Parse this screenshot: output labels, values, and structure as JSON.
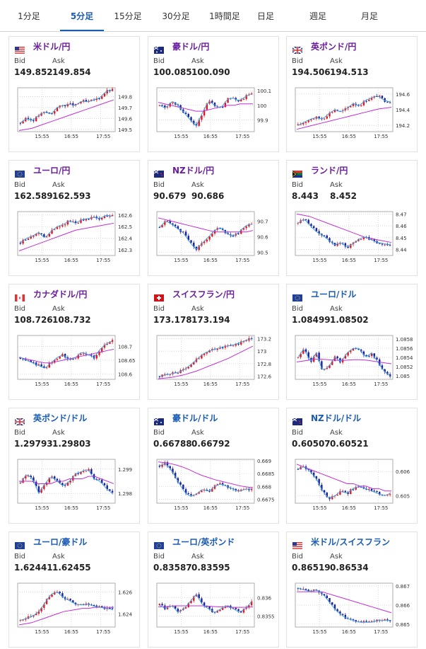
{
  "tabs": [
    {
      "label": "1分足",
      "active": false
    },
    {
      "label": "5分足",
      "active": true
    },
    {
      "label": "15分足",
      "active": false
    },
    {
      "label": "30分足",
      "active": false
    },
    {
      "label": "1時間足",
      "active": false
    },
    {
      "label": "日足",
      "active": false
    },
    {
      "label": "週足",
      "active": false
    },
    {
      "label": "月足",
      "active": false
    }
  ],
  "labels": {
    "bid": "Bid",
    "ask": "Ask"
  },
  "colors": {
    "tab_active": "#1a5bb5",
    "pair_jpy": "#6a1e9e",
    "pair_cross": "#1a5bb5",
    "candle_up": "#e8141c",
    "candle_down": "#1c1c9c",
    "ma_fast": "#3fa3e0",
    "ma_slow": "#c22fd3",
    "grid": "#cccccc"
  },
  "cards": [
    {
      "pair": "米ドル/円",
      "flag": "us-jp-flag-icon",
      "bid": "149.852",
      "ask": "149.854",
      "chart_data": {
        "type": "candlestick",
        "x_ticks": [
          "15:55",
          "16:55",
          "17:55"
        ],
        "y_ticks": [
          "149.8",
          "149.7",
          "149.6",
          "149.5"
        ],
        "ylim": [
          149.48,
          149.88
        ],
        "trend": [
          149.56,
          149.6,
          149.58,
          149.63,
          149.66,
          149.64,
          149.7,
          149.72,
          149.73,
          149.72,
          149.76,
          149.75,
          149.77,
          149.79,
          149.85,
          149.86
        ],
        "ma_slow": [
          149.49,
          149.5,
          149.51,
          149.53,
          149.55,
          149.57,
          149.59,
          149.61,
          149.63,
          149.65,
          149.67,
          149.69,
          149.71,
          149.73,
          149.75,
          149.77
        ]
      }
    },
    {
      "pair": "豪ドル/円",
      "flag": "au-jp-flag-icon",
      "bid": "100.085",
      "ask": "100.090",
      "chart_data": {
        "type": "candlestick",
        "x_ticks": [
          "15:55",
          "16:55",
          "17:55"
        ],
        "y_ticks": [
          "100.1",
          "100",
          "99.9"
        ],
        "ylim": [
          99.82,
          100.12
        ],
        "trend": [
          100.0,
          99.98,
          100.03,
          100.0,
          99.95,
          99.9,
          99.86,
          99.95,
          100.03,
          100.0,
          99.98,
          100.04,
          100.05,
          100.03,
          100.06,
          100.08
        ],
        "ma_slow": [
          100.02,
          100.01,
          100.0,
          99.99,
          99.98,
          99.97,
          99.96,
          99.96,
          99.97,
          99.98,
          99.99,
          100.0,
          100.0,
          100.01,
          100.01,
          100.01
        ]
      }
    },
    {
      "pair": "英ポンド/円",
      "flag": "gb-jp-flag-icon",
      "bid": "194.506",
      "ask": "194.513",
      "chart_data": {
        "type": "candlestick",
        "x_ticks": [
          "15:55",
          "16:55",
          "17:55"
        ],
        "y_ticks": [
          "194.6",
          "194.4",
          "194.2"
        ],
        "ylim": [
          194.12,
          194.68
        ],
        "trend": [
          194.2,
          194.24,
          194.28,
          194.3,
          194.28,
          194.35,
          194.4,
          194.37,
          194.42,
          194.48,
          194.45,
          194.52,
          194.55,
          194.58,
          194.52,
          194.5
        ],
        "ma_slow": [
          194.15,
          194.17,
          194.19,
          194.21,
          194.23,
          194.25,
          194.27,
          194.29,
          194.31,
          194.33,
          194.35,
          194.37,
          194.39,
          194.41,
          194.42,
          194.43
        ]
      }
    },
    {
      "pair": "ユーロ/円",
      "flag": "eu-jp-flag-icon",
      "bid": "162.589",
      "ask": "162.593",
      "chart_data": {
        "type": "candlestick",
        "x_ticks": [
          "15:55",
          "16:55",
          "17:55"
        ],
        "y_ticks": [
          "162.6",
          "162.5",
          "162.4",
          "162.3"
        ],
        "ylim": [
          162.25,
          162.63
        ],
        "trend": [
          162.36,
          162.4,
          162.42,
          162.45,
          162.4,
          162.46,
          162.5,
          162.52,
          162.55,
          162.53,
          162.56,
          162.57,
          162.58,
          162.57,
          162.6,
          162.59
        ],
        "ma_slow": [
          162.29,
          162.31,
          162.33,
          162.35,
          162.37,
          162.39,
          162.41,
          162.43,
          162.45,
          162.47,
          162.48,
          162.49,
          162.5,
          162.51,
          162.52,
          162.53
        ]
      }
    },
    {
      "pair": "NZドル/円",
      "flag": "nz-jp-flag-icon",
      "bid": "90.679",
      "ask": "90.686",
      "chart_data": {
        "type": "candlestick",
        "x_ticks": [
          "15:55",
          "16:55",
          "17:55"
        ],
        "y_ticks": [
          "90.7",
          "90.6",
          "90.5"
        ],
        "ylim": [
          90.48,
          90.76
        ],
        "trend": [
          90.66,
          90.7,
          90.68,
          90.65,
          90.62,
          90.56,
          90.52,
          90.56,
          90.6,
          90.64,
          90.66,
          90.62,
          90.6,
          90.63,
          90.67,
          90.68
        ],
        "ma_slow": [
          90.72,
          90.71,
          90.7,
          90.69,
          90.68,
          90.67,
          90.66,
          90.65,
          90.64,
          90.63,
          90.63,
          90.63,
          90.63,
          90.63,
          90.63,
          90.64
        ]
      }
    },
    {
      "pair": "ランド/円",
      "flag": "za-jp-flag-icon",
      "bid": "8.443",
      "ask": "8.452",
      "chart_data": {
        "type": "candlestick",
        "x_ticks": [
          "15:55",
          "16:55",
          "17:55"
        ],
        "y_ticks": [
          "8.47",
          "8.46",
          "8.45",
          "8.44"
        ],
        "ylim": [
          8.435,
          8.472
        ],
        "trend": [
          8.462,
          8.466,
          8.46,
          8.455,
          8.452,
          8.448,
          8.444,
          8.446,
          8.442,
          8.445,
          8.449,
          8.451,
          8.448,
          8.446,
          8.445,
          8.444
        ],
        "ma_slow": [
          8.47,
          8.469,
          8.468,
          8.466,
          8.464,
          8.462,
          8.46,
          8.458,
          8.456,
          8.454,
          8.452,
          8.45,
          8.449,
          8.448,
          8.447,
          8.446
        ]
      }
    },
    {
      "pair": "カナダドル/円",
      "flag": "ca-jp-flag-icon",
      "bid": "108.726",
      "ask": "108.732",
      "chart_data": {
        "type": "candlestick",
        "x_ticks": [
          "15:55",
          "16:55",
          "17:55"
        ],
        "y_ticks": [
          "108.7",
          "108.65",
          "108.6"
        ],
        "ylim": [
          108.58,
          108.74
        ],
        "trend": [
          108.66,
          108.65,
          108.64,
          108.63,
          108.62,
          108.64,
          108.66,
          108.67,
          108.65,
          108.66,
          108.68,
          108.67,
          108.66,
          108.69,
          108.71,
          108.72
        ],
        "ma_slow": [
          108.66,
          108.655,
          108.65,
          108.645,
          108.64,
          108.64,
          108.645,
          108.65,
          108.655,
          108.66,
          108.665,
          108.67,
          108.675,
          108.68,
          108.685,
          108.69
        ]
      }
    },
    {
      "pair": "スイスフラン/円",
      "flag": "ch-jp-flag-icon",
      "bid": "173.178",
      "ask": "173.194",
      "chart_data": {
        "type": "candlestick",
        "x_ticks": [
          "15:55",
          "16:55",
          "17:55"
        ],
        "y_ticks": [
          "173.2",
          "173",
          "172.8",
          "172.6"
        ],
        "ylim": [
          172.55,
          173.25
        ],
        "trend": [
          172.6,
          172.62,
          172.64,
          172.66,
          172.7,
          172.78,
          172.86,
          172.95,
          173.0,
          173.03,
          173.06,
          173.08,
          173.1,
          173.13,
          173.17,
          173.2
        ],
        "ma_slow": [
          172.56,
          172.57,
          172.58,
          172.6,
          172.62,
          172.65,
          172.68,
          172.72,
          172.76,
          172.8,
          172.84,
          172.88,
          172.93,
          172.98,
          173.03,
          173.08
        ]
      }
    },
    {
      "pair": "ユーロ/ドル",
      "flag": "eu-us-flag-icon",
      "bid": "1.08499",
      "ask": "1.08502",
      "chart_data": {
        "type": "candlestick",
        "x_ticks": [
          "15:55",
          "16:55",
          "17:55"
        ],
        "y_ticks": [
          "1.0858",
          "1.0856",
          "1.0854",
          "1.0852",
          "1.085"
        ],
        "ylim": [
          1.08492,
          1.08588
        ],
        "trend": [
          1.0854,
          1.0856,
          1.0853,
          1.0855,
          1.0851,
          1.0852,
          1.0854,
          1.0853,
          1.0855,
          1.0856,
          1.0856,
          1.0854,
          1.0855,
          1.0853,
          1.0851,
          1.085
        ],
        "ma_slow": [
          1.0853,
          1.08532,
          1.08534,
          1.08536,
          1.08536,
          1.08535,
          1.08534,
          1.08533,
          1.08534,
          1.08535,
          1.08535,
          1.08534,
          1.08532,
          1.0853,
          1.08528,
          1.08526
        ]
      }
    },
    {
      "pair": "英ポンド/ドル",
      "flag": "gb-us-flag-icon",
      "bid": "1.29793",
      "ask": "1.29803",
      "chart_data": {
        "type": "candlestick",
        "x_ticks": [
          "15:55",
          "16:55",
          "17:55"
        ],
        "y_ticks": [
          "1.299",
          "1.298"
        ],
        "ylim": [
          1.2976,
          1.2994
        ],
        "trend": [
          1.2984,
          1.2988,
          1.2986,
          1.298,
          1.2984,
          1.2987,
          1.2985,
          1.2983,
          1.2985,
          1.2988,
          1.2989,
          1.299,
          1.2986,
          1.2985,
          1.2982,
          1.298
        ],
        "ma_slow": [
          1.2985,
          1.2985,
          1.2985,
          1.2984,
          1.2984,
          1.2984,
          1.2985,
          1.2985,
          1.2986,
          1.2986,
          1.2986,
          1.2987,
          1.2987,
          1.2986,
          1.2985,
          1.2984
        ]
      }
    },
    {
      "pair": "豪ドル/ドル",
      "flag": "au-us-flag-icon",
      "bid": "0.66788",
      "ask": "0.66792",
      "chart_data": {
        "type": "candlestick",
        "x_ticks": [
          "15:55",
          "16:55",
          "17:55"
        ],
        "y_ticks": [
          "0.669",
          "0.6685",
          "0.668",
          "0.6675"
        ],
        "ylim": [
          0.66735,
          0.66905
        ],
        "trend": [
          0.6688,
          0.6689,
          0.6686,
          0.6682,
          0.6678,
          0.6676,
          0.6677,
          0.6679,
          0.6678,
          0.668,
          0.6681,
          0.668,
          0.6679,
          0.6678,
          0.6679,
          0.6679
        ],
        "ma_slow": [
          0.66895,
          0.66892,
          0.66888,
          0.66882,
          0.66874,
          0.66864,
          0.66852,
          0.66842,
          0.66834,
          0.66826,
          0.6682,
          0.66814,
          0.66808,
          0.66802,
          0.66798,
          0.66795
        ]
      }
    },
    {
      "pair": "NZドル/ドル",
      "flag": "nz-us-flag-icon",
      "bid": "0.60507",
      "ask": "0.60521",
      "chart_data": {
        "type": "candlestick",
        "x_ticks": [
          "15:55",
          "16:55",
          "17:55"
        ],
        "y_ticks": [
          "0.606",
          "0.605"
        ],
        "ylim": [
          0.6047,
          0.6065
        ],
        "trend": [
          0.6061,
          0.6062,
          0.606,
          0.6057,
          0.6052,
          0.6049,
          0.605,
          0.6052,
          0.6051,
          0.6053,
          0.6054,
          0.6053,
          0.6052,
          0.6051,
          0.605,
          0.6051
        ],
        "ma_slow": [
          0.6063,
          0.6062,
          0.6061,
          0.606,
          0.6059,
          0.6058,
          0.6057,
          0.6056,
          0.6055,
          0.6055,
          0.6054,
          0.6054,
          0.6053,
          0.6053,
          0.6052,
          0.6052
        ]
      }
    },
    {
      "pair": "ユーロ/豪ドル",
      "flag": "eu-au-flag-icon",
      "bid": "1.62441",
      "ask": "1.62455",
      "chart_data": {
        "type": "candlestick",
        "x_ticks": [
          "15:55",
          "16:55",
          "17:55"
        ],
        "y_ticks": [
          "1.626",
          "1.624"
        ],
        "ylim": [
          1.6228,
          1.6268
        ],
        "trend": [
          1.6234,
          1.6236,
          1.6238,
          1.6242,
          1.625,
          1.6258,
          1.626,
          1.6255,
          1.6252,
          1.6249,
          1.6248,
          1.6249,
          1.6247,
          1.6246,
          1.6245,
          1.6244
        ],
        "ma_slow": [
          1.623,
          1.6231,
          1.6232,
          1.6234,
          1.6236,
          1.6238,
          1.624,
          1.6242,
          1.6243,
          1.6244,
          1.6245,
          1.6245,
          1.6246,
          1.6246,
          1.6246,
          1.6246
        ]
      }
    },
    {
      "pair": "ユーロ/英ポンド",
      "flag": "eu-gb-flag-icon",
      "bid": "0.83587",
      "ask": "0.83595",
      "chart_data": {
        "type": "candlestick",
        "x_ticks": [
          "15:55",
          "16:55",
          "17:55"
        ],
        "y_ticks": [
          "0.836",
          "0.8355"
        ],
        "ylim": [
          0.8352,
          0.8364
        ],
        "trend": [
          0.8358,
          0.8357,
          0.8358,
          0.8356,
          0.8357,
          0.8359,
          0.8361,
          0.8358,
          0.8357,
          0.8356,
          0.8357,
          0.8358,
          0.8357,
          0.8356,
          0.8357,
          0.8359
        ],
        "ma_slow": [
          0.83575,
          0.83576,
          0.83577,
          0.83578,
          0.83578,
          0.83578,
          0.83578,
          0.83578,
          0.83577,
          0.83576,
          0.83575,
          0.83575,
          0.83574,
          0.83574,
          0.83574,
          0.83575
        ]
      }
    },
    {
      "pair": "米ドル/スイスフラン",
      "flag": "us-ch-flag-icon",
      "bid": "0.86519",
      "ask": "0.86534",
      "chart_data": {
        "type": "candlestick",
        "x_ticks": [
          "15:55",
          "16:55",
          "17:55"
        ],
        "y_ticks": [
          "0.867",
          "0.866",
          "0.865"
        ],
        "ylim": [
          0.86485,
          0.86715
        ],
        "trend": [
          0.8669,
          0.8668,
          0.8667,
          0.8668,
          0.8666,
          0.8662,
          0.8658,
          0.8655,
          0.8653,
          0.8652,
          0.8651,
          0.8651,
          0.8651,
          0.8652,
          0.8652,
          0.8652
        ],
        "ma_slow": [
          0.8667,
          0.8667,
          0.8667,
          0.8667,
          0.8667,
          0.8666,
          0.8665,
          0.8664,
          0.8663,
          0.8662,
          0.8661,
          0.866,
          0.8659,
          0.8658,
          0.8657,
          0.8656
        ]
      }
    }
  ]
}
